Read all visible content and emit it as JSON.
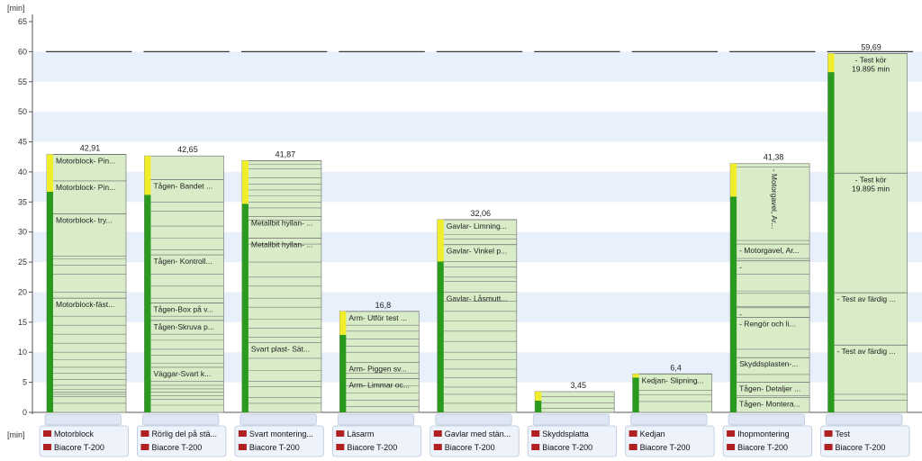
{
  "chart_data": {
    "type": "bar",
    "y_unit_label": "[min]",
    "ylim": [
      0,
      65
    ],
    "yticks": [
      0,
      5,
      10,
      15,
      20,
      25,
      30,
      35,
      40,
      45,
      50,
      55,
      60,
      65
    ],
    "reference_line": 60,
    "grid_bands": true,
    "bar_base_color": "#d8ecc8",
    "bar_border_color": "#8a8a8a",
    "green_color": "#2a9a1e",
    "yellow_color": "#f0ee2a",
    "band_color": "#e8f0fb",
    "refline_color": "#3a3a3a",
    "resource_label": "Biacore T-200",
    "categories": [
      {
        "name": "Motorblock",
        "total": 42.91,
        "total_label": "42,91",
        "green": 36.7,
        "yellow": 6.21,
        "segments": [
          {
            "y": 42.91,
            "text": "Motorblock- Pin..."
          },
          {
            "y": 38.5,
            "text": "Motorblock- Pin..."
          },
          {
            "y": 33.0,
            "text": "Motorblock- try..."
          },
          {
            "y": 19.0,
            "text": "Motorblock-fäst..."
          }
        ],
        "extra_lines": [
          26,
          25.5,
          24.5,
          23,
          20,
          16,
          14.5,
          13,
          11.5,
          10,
          8.8,
          7.5,
          6.5,
          5.5,
          4.5,
          3.8,
          3.4,
          3.0,
          2.6,
          1.5
        ]
      },
      {
        "name": "Rörlig del på stä...",
        "total": 42.65,
        "total_label": "42,65",
        "green": 36.2,
        "yellow": 6.45,
        "segments": [
          {
            "y": 38.7,
            "text": "Tågen- Bandet ..."
          },
          {
            "y": 26.2,
            "text": "Tågen- Kontroll..."
          },
          {
            "y": 18.2,
            "text": "Tågen-Box på v..."
          },
          {
            "y": 15.3,
            "text": "Tågen-Skruva p..."
          },
          {
            "y": 7.5,
            "text": "Väggar-Svart k..."
          }
        ],
        "extra_lines": [
          35,
          33.5,
          31,
          29,
          27,
          23,
          21,
          19,
          16,
          13,
          12,
          10.5,
          9.5,
          8.2,
          5.2,
          4.5,
          3.9,
          3.4,
          2.8,
          2.2,
          1.2
        ]
      },
      {
        "name": "Svart montering...",
        "total": 41.87,
        "total_label": "41,87",
        "green": 34.7,
        "yellow": 7.17,
        "segments": [
          {
            "y": 41.87,
            "text": ""
          },
          {
            "y": 32.6,
            "text": "Metallbit hyllan- ..."
          },
          {
            "y": 29.0,
            "text": "Metallbit hyllan- ..."
          },
          {
            "y": 11.6,
            "text": "Svart plast- Sät..."
          }
        ],
        "extra_lines": [
          41.3,
          40.5,
          39,
          38,
          37,
          36,
          35,
          34,
          32,
          28,
          25,
          22.5,
          21,
          19,
          17.5,
          15.5,
          14,
          12.5,
          9,
          7,
          5.2,
          4.3,
          2.5,
          1.5
        ]
      },
      {
        "name": "Läsarm",
        "total": 16.8,
        "total_label": "16,8",
        "green": 12.9,
        "yellow": 3.9,
        "segments": [
          {
            "y": 16.8,
            "text": "Arm- Utför test ..."
          },
          {
            "y": 8.3,
            "text": "Arm- Piggen sv..."
          },
          {
            "y": 5.6,
            "text": "Arm- Limmar oc..."
          }
        ],
        "extra_lines": [
          14.5,
          13.5,
          12.2,
          11,
          10,
          6.5,
          4.4,
          3.2,
          2.0,
          1.0
        ]
      },
      {
        "name": "Gavlar med stän...",
        "total": 32.06,
        "total_label": "32,06",
        "green": 25.1,
        "yellow": 6.96,
        "segments": [
          {
            "y": 32.06,
            "text": "Gavlar- Limning..."
          },
          {
            "y": 27.9,
            "text": "Gavlar- Vinkel p..."
          },
          {
            "y": 20.0,
            "text": "Gavlar- Låsmutt..."
          }
        ],
        "extra_lines": [
          29.6,
          28.8,
          25.1,
          24.2,
          22.5,
          21.8,
          18.5,
          16.8,
          15.2,
          13.5,
          11.8,
          10,
          8.8,
          7.2,
          5.8,
          4.2,
          3,
          1.5
        ]
      },
      {
        "name": "Skyddsplatta",
        "total": 3.45,
        "total_label": "3,45",
        "green": 1.95,
        "yellow": 1.5,
        "segments": [],
        "extra_lines": [
          2.6,
          1.6,
          0.7
        ]
      },
      {
        "name": "Kedjan",
        "total": 6.4,
        "total_label": "6,4",
        "green": 5.8,
        "yellow": 0.6,
        "segments": [
          {
            "y": 6.4,
            "text": "Kedjan- Slipning..."
          }
        ],
        "extra_lines": [
          3.7,
          2.9,
          1.8
        ]
      },
      {
        "name": "Ihopmontering",
        "total": 41.38,
        "total_label": "41,38",
        "green": 35.9,
        "yellow": 5.48,
        "vertical_label": "- Motorgavel, Ar...",
        "segments": [
          {
            "y": 28.0,
            "text": "- Motorgavel, Ar..."
          },
          {
            "y": 25.2,
            "text": "-"
          },
          {
            "y": 17.4,
            "text": "-"
          },
          {
            "y": 15.8,
            "text": "- Rengör och li..."
          },
          {
            "y": 9.1,
            "text": "Skyddsplasten-..."
          },
          {
            "y": 5.0,
            "text": "Tågen- Detaljer ..."
          },
          {
            "y": 2.5,
            "text": "Tågen- Montera..."
          }
        ],
        "extra_lines": [
          40.8,
          28.6,
          25.6,
          23,
          20.2,
          19.8,
          17.6,
          10.5,
          6.3,
          2.8
        ]
      },
      {
        "name": "Test",
        "total": 59.69,
        "total_label": "59,69",
        "green": 56.6,
        "yellow": 3.09,
        "segments": [
          {
            "y": 59.69,
            "text": "- Test kör",
            "text2": "19.895 min"
          },
          {
            "y": 39.8,
            "text": "- Test kör",
            "text2": "19.895 min"
          },
          {
            "y": 19.9,
            "text": "- Test av färdig ..."
          },
          {
            "y": 11.2,
            "text": "- Test av färdig ..."
          }
        ],
        "extra_lines": [
          3.0,
          2.0
        ]
      }
    ]
  }
}
